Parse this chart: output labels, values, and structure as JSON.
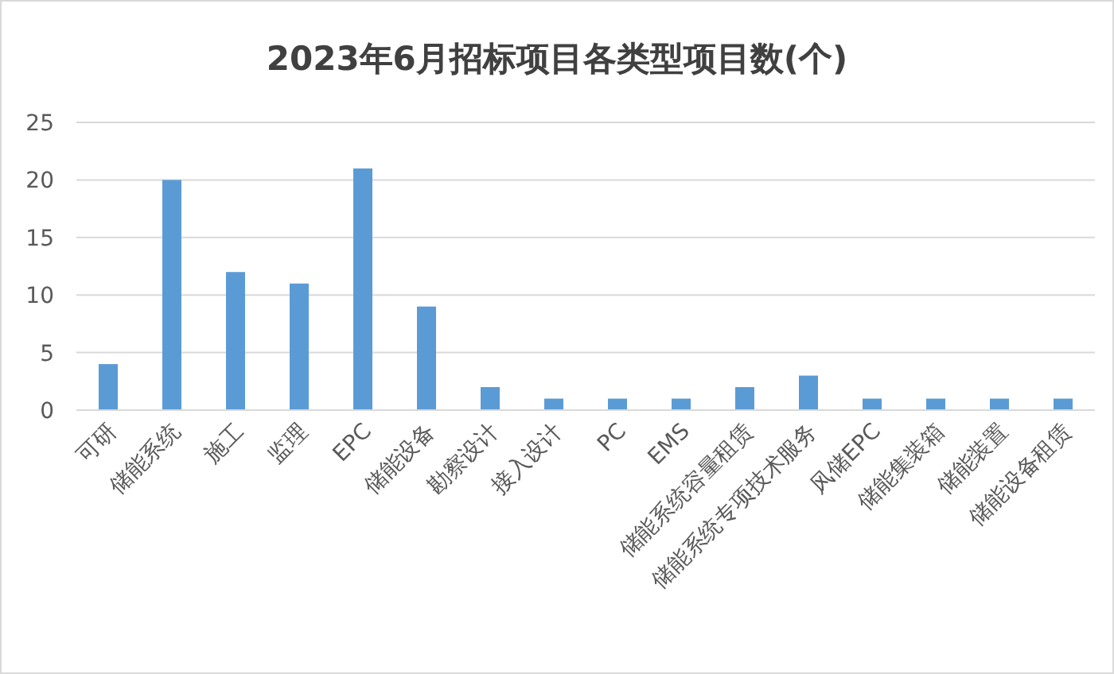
{
  "chart_data": {
    "type": "bar",
    "title": "2023年6月招标项目各类型项目数(个)",
    "categories": [
      "可研",
      "储能系统",
      "施工",
      "监理",
      "EPC",
      "储能设备",
      "勘察设计",
      "接入设计",
      "PC",
      "EMS",
      "储能系统容量租赁",
      "储能系统专项技术服务",
      "风储EPC",
      "储能集装箱",
      "储能装置",
      "储能设备租赁"
    ],
    "values": [
      4,
      20,
      12,
      11,
      21,
      9,
      2,
      1,
      1,
      1,
      2,
      3,
      1,
      1,
      1,
      1
    ],
    "color": "#5b9bd5",
    "ylim": [
      0,
      25
    ],
    "yticks": [
      0,
      5,
      10,
      15,
      20,
      25
    ],
    "grid": "y"
  }
}
